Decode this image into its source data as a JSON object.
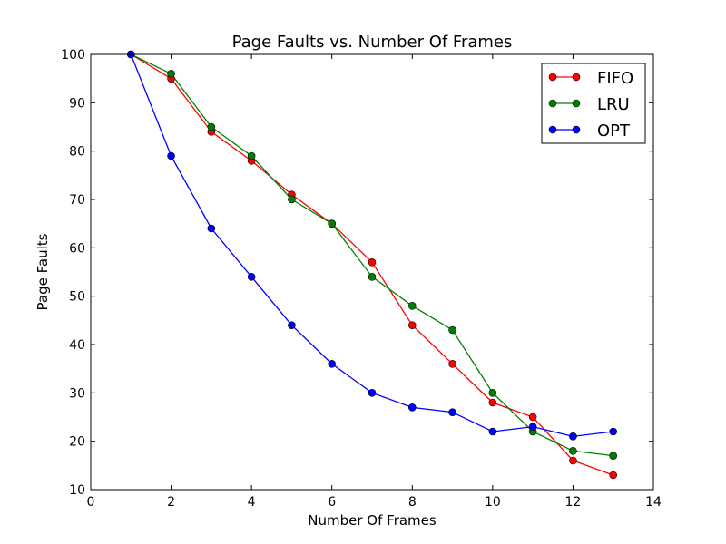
{
  "chart_data": {
    "type": "line",
    "title": "Page Faults vs. Number Of Frames",
    "xlabel": "Number Of Frames",
    "ylabel": "Page Faults",
    "xlim": [
      0,
      14
    ],
    "ylim": [
      10,
      100
    ],
    "xticks": [
      0,
      2,
      4,
      6,
      8,
      10,
      12,
      14
    ],
    "yticks": [
      10,
      20,
      30,
      40,
      50,
      60,
      70,
      80,
      90,
      100
    ],
    "grid": false,
    "legend": "top-right",
    "x": [
      1,
      2,
      3,
      4,
      5,
      6,
      7,
      8,
      9,
      10,
      11,
      12,
      13
    ],
    "series": [
      {
        "name": "FIFO",
        "color": "#ff0000",
        "values": [
          100,
          95,
          84,
          78,
          71,
          65,
          57,
          44,
          36,
          28,
          25,
          16,
          13
        ]
      },
      {
        "name": "LRU",
        "color": "#008000",
        "values": [
          100,
          96,
          85,
          79,
          70,
          65,
          54,
          48,
          43,
          30,
          22,
          18,
          17
        ]
      },
      {
        "name": "OPT",
        "color": "#0000ff",
        "values": [
          100,
          79,
          64,
          54,
          44,
          36,
          30,
          27,
          26,
          22,
          23,
          21,
          22
        ]
      }
    ]
  }
}
